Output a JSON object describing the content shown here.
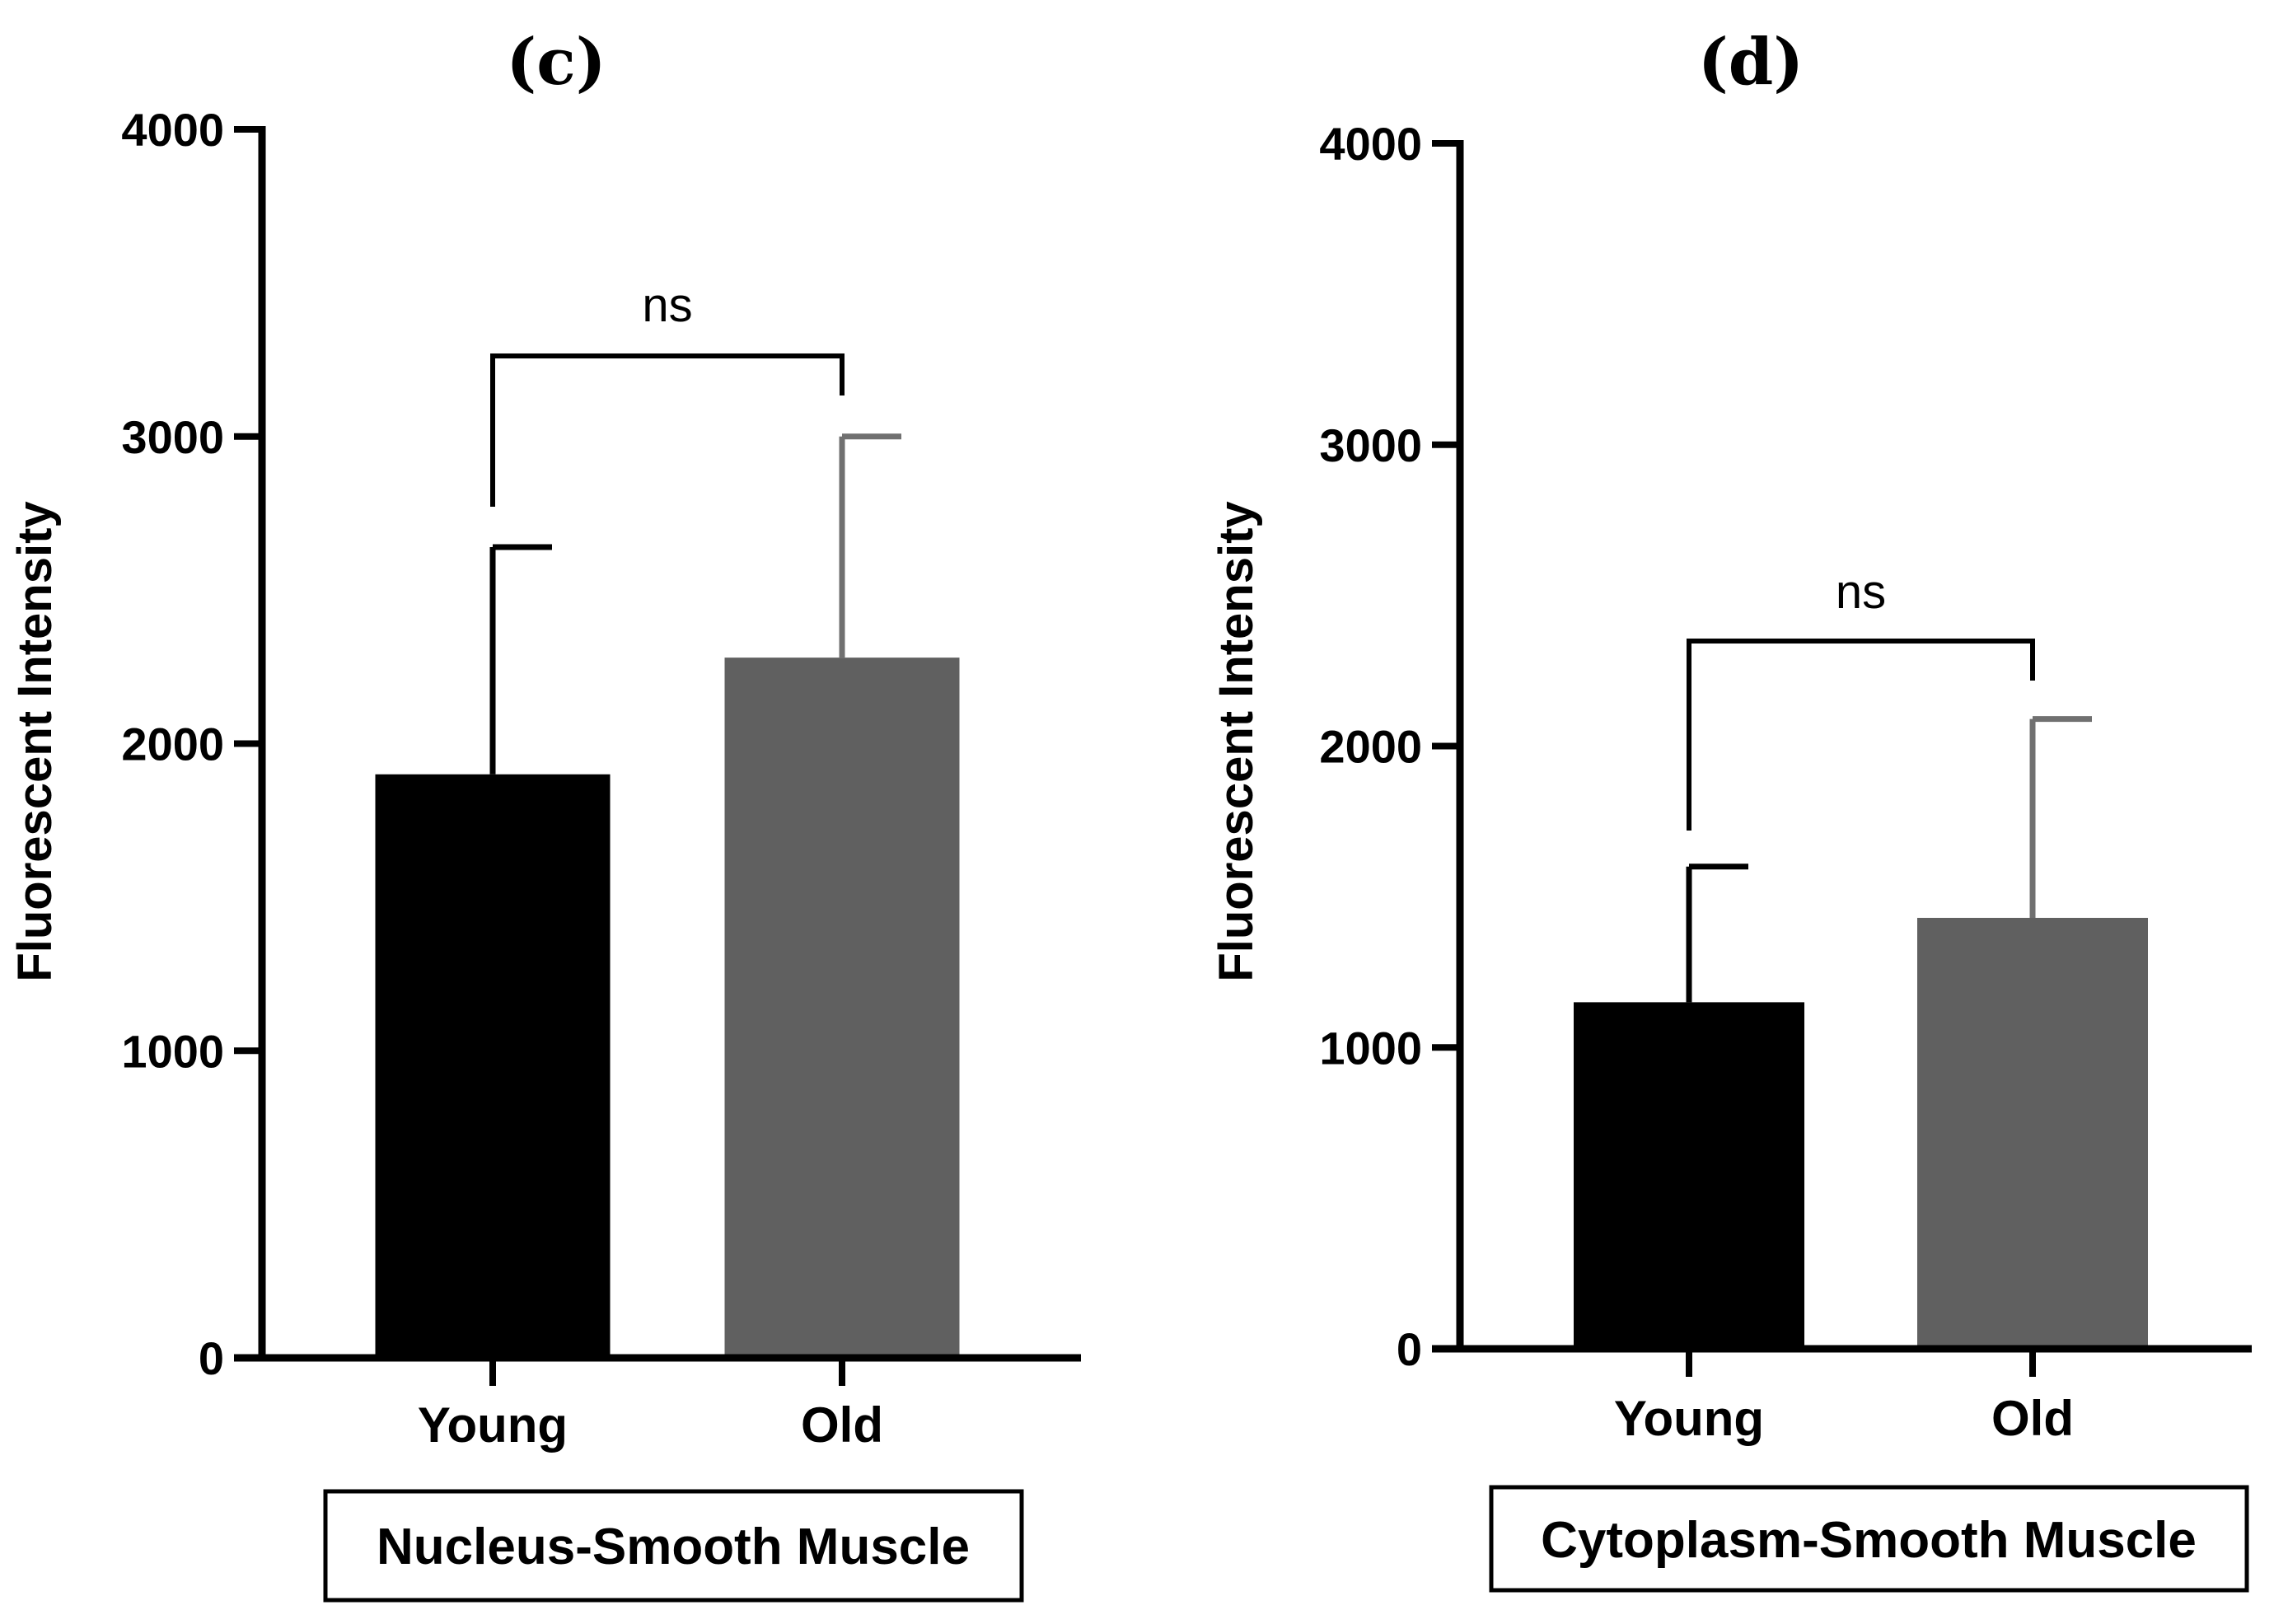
{
  "chart_data": [
    {
      "type": "bar",
      "panel_label": "(c)",
      "caption": "Nucleus-Smooth Muscle",
      "ylabel": "Fluorescent Intensity",
      "xlabel": "",
      "categories": [
        "Young",
        "Old"
      ],
      "values": [
        1900,
        2280
      ],
      "error_upper": [
        2640,
        3000
      ],
      "colors": [
        "#000000",
        "#606060"
      ],
      "error_colors": [
        "#000000",
        "#707070"
      ],
      "ylim": [
        0,
        4000
      ],
      "yticks": [
        0,
        1000,
        2000,
        3000,
        4000
      ],
      "ytick_labels": [
        "0",
        "1000",
        "2000",
        "3000",
        "4000"
      ],
      "significance": {
        "label": "ns",
        "from": 0,
        "to": 1
      },
      "grid": false,
      "legend": "none"
    },
    {
      "type": "bar",
      "panel_label": "(d)",
      "caption": "Cytoplasm-Smooth Muscle",
      "ylabel": "Fluorescent Intensity",
      "xlabel": "",
      "categories": [
        "Young",
        "Old"
      ],
      "values": [
        1150,
        1430
      ],
      "error_upper": [
        1600,
        2090
      ],
      "colors": [
        "#000000",
        "#606060"
      ],
      "error_colors": [
        "#000000",
        "#707070"
      ],
      "ylim": [
        0,
        4000
      ],
      "yticks": [
        0,
        1000,
        2000,
        3000,
        4000
      ],
      "ytick_labels": [
        "0",
        "1000",
        "2000",
        "3000",
        "4000"
      ],
      "significance": {
        "label": "ns",
        "from": 0,
        "to": 1
      },
      "grid": false,
      "legend": "none"
    }
  ]
}
